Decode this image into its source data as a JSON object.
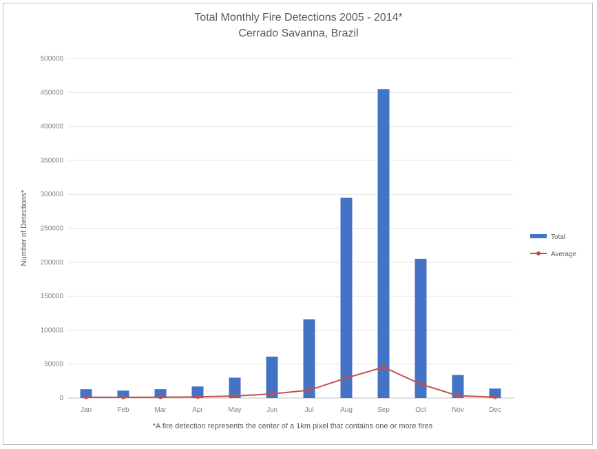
{
  "chart_data": {
    "type": "bar",
    "title": "Total Monthly Fire Detections 2005 - 2014*",
    "subtitle": "Cerrado Savanna, Brazil",
    "ylabel": "Number of Detections*",
    "footnote": "*A fire detection represents the center of a 1km pixel that contains one or more fires",
    "categories": [
      "Jan",
      "Feb",
      "Mar",
      "Apr",
      "May",
      "Jun",
      "Jul",
      "Aug",
      "Sep",
      "Oct",
      "Nov",
      "Dec"
    ],
    "ylim": [
      0,
      500000
    ],
    "yticks": [
      "0",
      "50000",
      "100000",
      "150000",
      "200000",
      "250000",
      "300000",
      "350000",
      "400000",
      "450000",
      "500000"
    ],
    "grid": true,
    "legend_position": "right",
    "series": [
      {
        "name": "Total",
        "kind": "bar",
        "color": "#4472c4",
        "values": [
          13000,
          11000,
          13000,
          17000,
          30000,
          61000,
          116000,
          295000,
          455000,
          205000,
          34000,
          14000
        ]
      },
      {
        "name": "Average",
        "kind": "line",
        "color": "#c0504d",
        "values": [
          1300,
          1100,
          1300,
          1700,
          3000,
          6100,
          11600,
          29500,
          45500,
          20500,
          3400,
          1400
        ]
      }
    ]
  }
}
